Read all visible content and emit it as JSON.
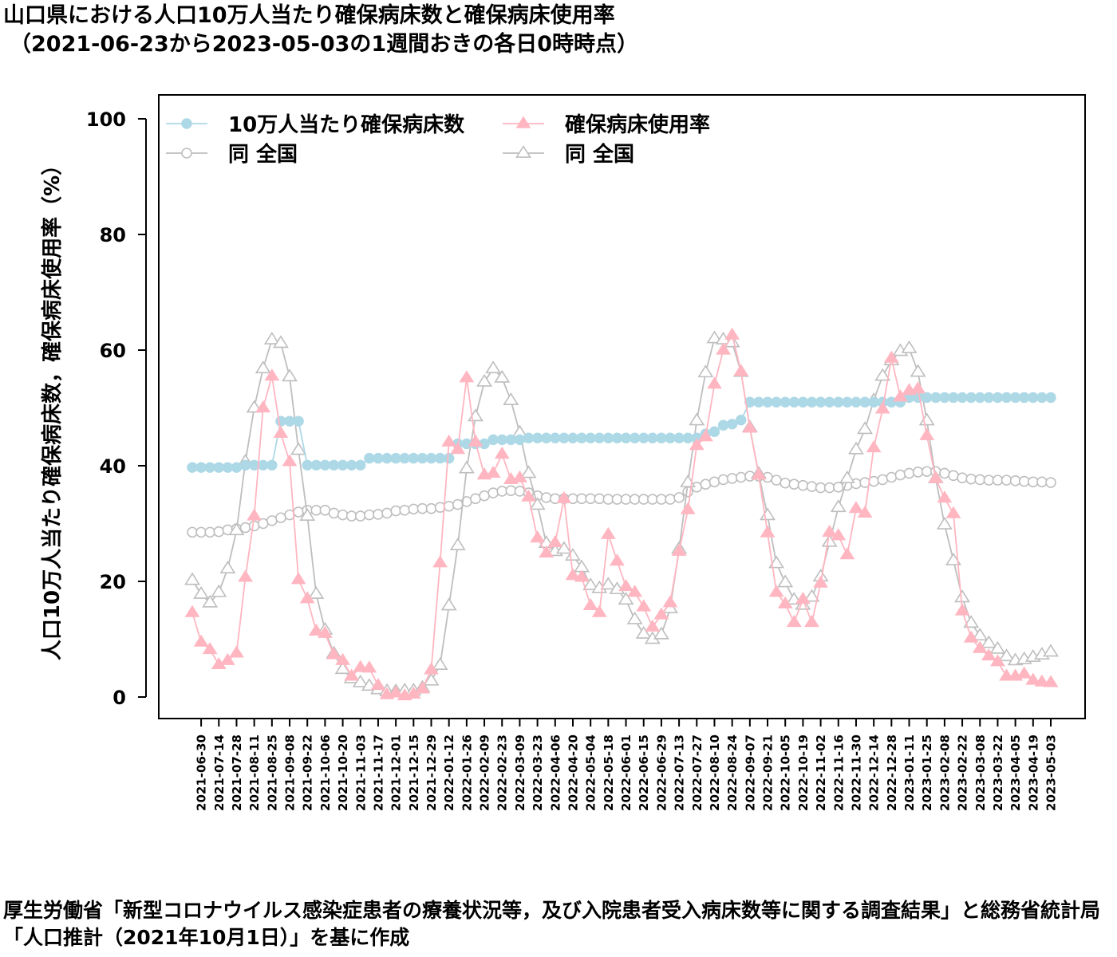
{
  "title": {
    "line1": "山口県における人口10万人当たり確保病床数と確保病床使用率",
    "line2": "（2021-06-23から2023-05-03の1週間おきの各日0時時点）"
  },
  "source": "厚生労働省「新型コロナウイルス感染症患者の療養状況等，及び入院患者受入病床数等に関する調査結果」と総務省統計局「人口推計（2021年10月1日）」を基に作成",
  "chart_data": {
    "type": "line",
    "ylabel": "人口10万人当たり確保病床数，確保病床使用率（%）",
    "ylim": [
      0,
      100
    ],
    "yticks": [
      0,
      20,
      40,
      60,
      80,
      100
    ],
    "x": [
      "2021-06-23",
      "2021-06-30",
      "2021-07-07",
      "2021-07-14",
      "2021-07-21",
      "2021-07-28",
      "2021-08-04",
      "2021-08-11",
      "2021-08-18",
      "2021-08-25",
      "2021-09-01",
      "2021-09-08",
      "2021-09-15",
      "2021-09-22",
      "2021-09-29",
      "2021-10-06",
      "2021-10-13",
      "2021-10-20",
      "2021-10-27",
      "2021-11-03",
      "2021-11-10",
      "2021-11-17",
      "2021-11-24",
      "2021-12-01",
      "2021-12-08",
      "2021-12-15",
      "2021-12-22",
      "2021-12-29",
      "2022-01-05",
      "2022-01-12",
      "2022-01-19",
      "2022-01-26",
      "2022-02-02",
      "2022-02-09",
      "2022-02-16",
      "2022-02-23",
      "2022-03-02",
      "2022-03-09",
      "2022-03-16",
      "2022-03-23",
      "2022-03-30",
      "2022-04-06",
      "2022-04-13",
      "2022-04-20",
      "2022-04-27",
      "2022-05-04",
      "2022-05-11",
      "2022-05-18",
      "2022-05-25",
      "2022-06-01",
      "2022-06-08",
      "2022-06-15",
      "2022-06-22",
      "2022-06-29",
      "2022-07-06",
      "2022-07-13",
      "2022-07-20",
      "2022-07-27",
      "2022-08-03",
      "2022-08-10",
      "2022-08-17",
      "2022-08-24",
      "2022-08-31",
      "2022-09-07",
      "2022-09-14",
      "2022-09-21",
      "2022-09-28",
      "2022-10-05",
      "2022-10-12",
      "2022-10-19",
      "2022-10-26",
      "2022-11-02",
      "2022-11-09",
      "2022-11-16",
      "2022-11-23",
      "2022-11-30",
      "2022-12-07",
      "2022-12-14",
      "2022-12-21",
      "2022-12-28",
      "2023-01-04",
      "2023-01-11",
      "2023-01-18",
      "2023-01-25",
      "2023-02-01",
      "2023-02-08",
      "2023-02-15",
      "2023-02-22",
      "2023-03-01",
      "2023-03-08",
      "2023-03-15",
      "2023-03-22",
      "2023-03-29",
      "2023-04-05",
      "2023-04-12",
      "2023-04-19",
      "2023-04-26",
      "2023-05-03"
    ],
    "xtick_labels": [
      "2021-06-30",
      "2021-07-14",
      "2021-07-28",
      "2021-08-11",
      "2021-08-25",
      "2021-09-08",
      "2021-09-22",
      "2021-10-06",
      "2021-10-20",
      "2021-11-03",
      "2021-11-17",
      "2021-12-01",
      "2021-12-15",
      "2021-12-29",
      "2022-01-12",
      "2022-01-26",
      "2022-02-09",
      "2022-02-23",
      "2022-03-09",
      "2022-03-23",
      "2022-04-06",
      "2022-04-20",
      "2022-05-04",
      "2022-05-18",
      "2022-06-01",
      "2022-06-15",
      "2022-06-29",
      "2022-07-13",
      "2022-07-27",
      "2022-08-10",
      "2022-08-24",
      "2022-09-07",
      "2022-09-21",
      "2022-10-05",
      "2022-10-19",
      "2022-11-02",
      "2022-11-16",
      "2022-11-30",
      "2022-12-14",
      "2022-12-28",
      "2023-01-11",
      "2023-01-25",
      "2023-02-08",
      "2023-02-22",
      "2023-03-08",
      "2023-03-22",
      "2023-04-05",
      "2023-04-19",
      "2023-05-03"
    ],
    "legend_position": "top-left",
    "grid": false,
    "series": [
      {
        "name": "10万人当たり確保病床数",
        "color": "#add8e6",
        "marker": "circle-filled",
        "values": [
          39.7,
          39.7,
          39.7,
          39.7,
          39.7,
          39.7,
          40.1,
          40.1,
          40.1,
          40.1,
          47.7,
          47.7,
          47.7,
          40.1,
          40.1,
          40.1,
          40.1,
          40.1,
          40.1,
          40.1,
          41.3,
          41.3,
          41.3,
          41.3,
          41.3,
          41.3,
          41.3,
          41.3,
          41.3,
          41.3,
          43.8,
          43.8,
          43.8,
          43.8,
          44.5,
          44.5,
          44.5,
          44.5,
          44.8,
          44.8,
          44.8,
          44.8,
          44.8,
          44.8,
          44.8,
          44.8,
          44.8,
          44.8,
          44.8,
          44.8,
          44.8,
          44.8,
          44.8,
          44.8,
          44.8,
          44.8,
          44.8,
          44.8,
          45.5,
          45.9,
          47.0,
          47.2,
          47.9,
          51.0,
          51.0,
          51.0,
          51.0,
          51.0,
          51.0,
          51.0,
          51.0,
          51.0,
          51.0,
          51.0,
          51.0,
          51.0,
          51.0,
          51.0,
          51.0,
          51.0,
          51.0,
          51.8,
          51.8,
          51.8,
          51.8,
          51.8,
          51.8,
          51.8,
          51.8,
          51.8,
          51.8,
          51.8,
          51.8,
          51.8,
          51.8,
          51.8,
          51.8,
          51.8
        ]
      },
      {
        "name": "同 全国",
        "color": "#bebebe",
        "marker": "circle-open",
        "values": [
          28.5,
          28.5,
          28.5,
          28.6,
          28.9,
          29.1,
          29.3,
          29.6,
          30.0,
          30.5,
          31.0,
          31.5,
          32.0,
          32.3,
          32.3,
          32.3,
          31.8,
          31.5,
          31.3,
          31.3,
          31.5,
          31.6,
          31.8,
          32.2,
          32.3,
          32.5,
          32.6,
          32.6,
          32.8,
          33.0,
          33.3,
          33.8,
          34.3,
          34.8,
          35.3,
          35.6,
          35.7,
          35.6,
          35.3,
          34.8,
          34.5,
          34.3,
          34.3,
          34.3,
          34.3,
          34.3,
          34.3,
          34.2,
          34.2,
          34.2,
          34.2,
          34.2,
          34.2,
          34.2,
          34.2,
          34.5,
          35.5,
          36.3,
          36.8,
          37.2,
          37.6,
          37.8,
          38.0,
          38.2,
          38.2,
          38.0,
          37.5,
          37.0,
          36.8,
          36.6,
          36.4,
          36.2,
          36.2,
          36.3,
          36.6,
          36.9,
          37.1,
          37.3,
          37.6,
          38.0,
          38.4,
          38.7,
          38.9,
          39.0,
          39.0,
          38.7,
          38.3,
          37.9,
          37.7,
          37.6,
          37.5,
          37.5,
          37.5,
          37.4,
          37.3,
          37.2,
          37.2,
          37.1
        ]
      },
      {
        "name": "確保病床使用率",
        "color": "#ffb6c1",
        "marker": "triangle-filled",
        "values": [
          14.6,
          9.5,
          8.2,
          5.6,
          6.3,
          7.6,
          20.7,
          31.3,
          50.0,
          55.5,
          45.6,
          40.7,
          20.3,
          17.0,
          11.4,
          11.0,
          7.3,
          6.3,
          3.6,
          5.1,
          5.0,
          2.0,
          0.4,
          0.7,
          0.2,
          0.5,
          1.4,
          4.7,
          23.2,
          44.1,
          42.8,
          55.2,
          44.1,
          38.4,
          38.7,
          42.0,
          37.6,
          37.9,
          34.6,
          27.5,
          24.9,
          26.7,
          34.3,
          21.0,
          20.7,
          15.8,
          14.6,
          28.1,
          23.5,
          19.1,
          18.1,
          15.6,
          12.1,
          14.2,
          16.3,
          25.2,
          32.4,
          43.5,
          45.0,
          54.1,
          60.0,
          62.6,
          56.3,
          46.5,
          38.4,
          28.4,
          18.1,
          16.1,
          12.9,
          16.9,
          12.9,
          19.7,
          28.5,
          27.9,
          24.6,
          32.6,
          31.8,
          43.1,
          49.8,
          58.6,
          51.9,
          53.0,
          53.3,
          45.2,
          37.8,
          34.4,
          31.7,
          14.9,
          10.2,
          8.4,
          7.1,
          6.1,
          3.6,
          3.6,
          4.0,
          2.9,
          2.6,
          2.5
        ]
      },
      {
        "name": "同 全国",
        "color": "#bebebe",
        "marker": "triangle-open",
        "values": [
          20.2,
          17.8,
          16.3,
          18.1,
          22.2,
          28.8,
          40.7,
          50.0,
          56.8,
          61.8,
          61.2,
          55.4,
          42.7,
          31.3,
          17.8,
          11.6,
          7.5,
          4.8,
          3.2,
          2.5,
          1.9,
          1.3,
          1.0,
          1.0,
          1.1,
          1.1,
          1.6,
          2.8,
          5.5,
          15.8,
          26.2,
          39.5,
          48.5,
          54.5,
          56.8,
          55.2,
          51.3,
          45.7,
          38.7,
          33.2,
          26.6,
          25.2,
          25.6,
          24.4,
          22.4,
          19.3,
          18.8,
          19.4,
          18.6,
          16.8,
          13.4,
          10.9,
          10.0,
          10.8,
          15.3,
          25.6,
          37.1,
          47.8,
          56.1,
          62.0,
          61.8,
          61.3,
          56.2,
          46.6,
          38.6,
          31.4,
          23.1,
          19.8,
          16.8,
          15.9,
          17.3,
          20.8,
          26.8,
          32.8,
          37.8,
          42.8,
          46.3,
          51.3,
          55.5,
          58.2,
          59.8,
          60.3,
          56.2,
          47.8,
          37.8,
          29.8,
          23.6,
          17.2,
          12.8,
          10.6,
          9.3,
          8.3,
          7.0,
          6.3,
          6.5,
          6.9,
          7.3,
          7.8
        ]
      }
    ]
  }
}
